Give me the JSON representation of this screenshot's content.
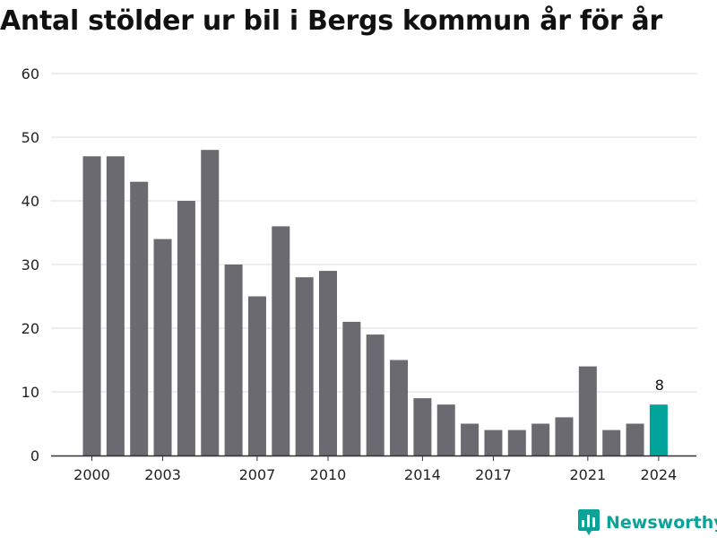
{
  "title": "Antal stölder ur bil i Bergs kommun år för år",
  "brand": {
    "name": "Newsworthy",
    "icon": "bar-chart-speech-bubble-icon",
    "color": "#0aa398"
  },
  "colors": {
    "bar": "#6b6a70",
    "highlight": "#00a49a",
    "grid": "#dddddd",
    "text": "#222222"
  },
  "chart_data": {
    "type": "bar",
    "title": "Antal stölder ur bil i Bergs kommun år för år",
    "xlabel": "",
    "ylabel": "",
    "categories": [
      "2000",
      "2001",
      "2002",
      "2003",
      "2004",
      "2005",
      "2006",
      "2007",
      "2008",
      "2009",
      "2010",
      "2011",
      "2012",
      "2013",
      "2014",
      "2015",
      "2016",
      "2017",
      "2018",
      "2019",
      "2020",
      "2021",
      "2022",
      "2023",
      "2024"
    ],
    "values": [
      47,
      47,
      43,
      34,
      40,
      48,
      30,
      25,
      36,
      28,
      29,
      21,
      19,
      15,
      9,
      8,
      5,
      4,
      4,
      5,
      6,
      14,
      4,
      5,
      8
    ],
    "ylim": [
      0,
      60
    ],
    "yticks": [
      0,
      10,
      20,
      30,
      40,
      50,
      60
    ],
    "xtick_labels": [
      "2000",
      "2003",
      "2007",
      "2010",
      "2014",
      "2017",
      "2021",
      "2024"
    ],
    "highlight": {
      "category": "2024",
      "label": "8"
    },
    "grid": "horizontal"
  }
}
